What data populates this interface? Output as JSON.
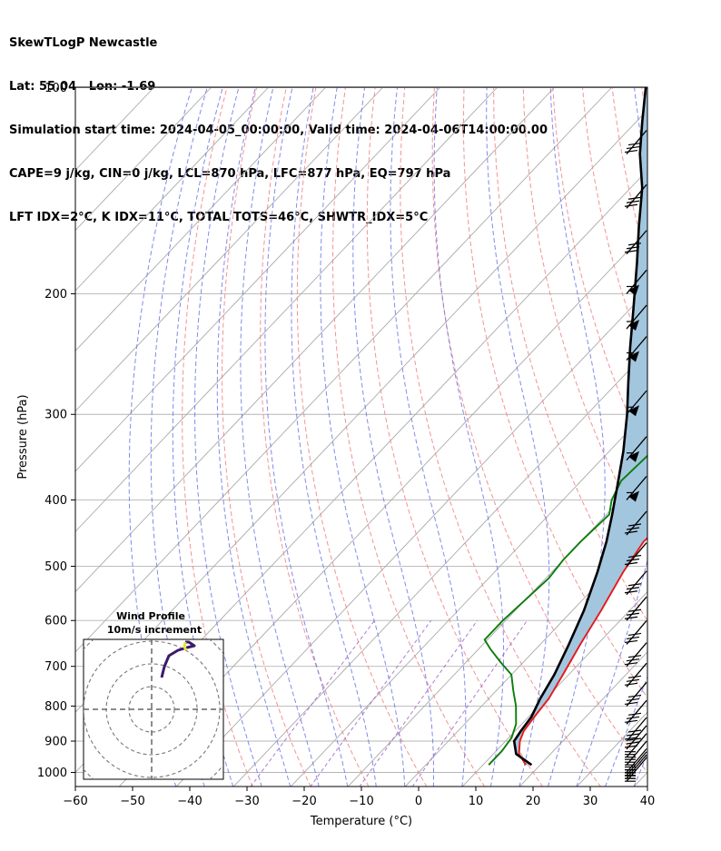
{
  "header": {
    "lines": [
      "SkewTLogP Newcastle",
      "Lat: 55.04   Lon: -1.69",
      "Simulation start time: 2024-04-05_00:00:00, Valid time: 2024-04-06T14:00:00.00",
      "CAPE=9 j/kg, CIN=0 j/kg, LCL=870 hPa, LFC=877 hPa, EQ=797 hPa",
      "LFT IDX=2°C, K IDX=11°C, TOTAL TOTS=46°C, SHWTR_IDX=5°C"
    ]
  },
  "chart_data": {
    "type": "line",
    "subtype": "skew-t log-p",
    "xlabel": "Temperature (°C)",
    "ylabel": "Pressure (hPa)",
    "xlim": [
      -60,
      40
    ],
    "ylim": [
      1050,
      100
    ],
    "y_scale": "log",
    "x_ticks": [
      -60,
      -50,
      -40,
      -30,
      -20,
      -10,
      0,
      10,
      20,
      30,
      40
    ],
    "x_tick_labels": [
      "−60",
      "−50",
      "−40",
      "−30",
      "−20",
      "−10",
      "0",
      "10",
      "20",
      "30",
      "40"
    ],
    "y_ticks": [
      1000,
      900,
      800,
      700,
      600,
      500,
      400,
      300,
      200,
      100
    ],
    "y_tick_labels": [
      "1000",
      "900",
      "800",
      "700",
      "600",
      "500",
      "400",
      "300",
      "200",
      "100"
    ],
    "grid": true,
    "colors": {
      "temperature": "#e8191a",
      "dewpoint": "#0b7d0b",
      "parcel": "#000000",
      "fill": "#a3c6df",
      "dry_adiabat": "#f08080",
      "moist_adiabat": "#6b75e8",
      "mixing_ratio": "#9b59c9",
      "isotherm": "#aaaaaa"
    },
    "series": [
      {
        "key": "temperature",
        "p": [
          975,
          940,
          900,
          870,
          830,
          780,
          720,
          650,
          580,
          510,
          460,
          430,
          400,
          375,
          340,
          300,
          270,
          240,
          220,
          200,
          185,
          170,
          155,
          140,
          125,
          115,
          108,
          100
        ],
        "t": [
          17.5,
          14.5,
          12.5,
          11.5,
          11,
          10.5,
          9,
          7,
          5,
          2.5,
          1,
          1.5,
          3,
          1.5,
          -2,
          -6,
          -9,
          -11.5,
          -12.5,
          -12,
          -9.5,
          -5.5,
          -1.5,
          5,
          11,
          16,
          18,
          18.5
        ]
      },
      {
        "key": "dewpoint",
        "p": [
          975,
          930,
          890,
          850,
          800,
          760,
          720,
          690,
          660,
          640,
          600,
          560,
          520,
          490,
          460,
          420,
          400,
          375,
          340,
          320,
          300,
          270,
          240,
          210,
          190,
          170,
          155,
          140,
          125,
          112,
          100
        ],
        "t": [
          11,
          11,
          10.5,
          9,
          6,
          3,
          0,
          -4,
          -8,
          -10.5,
          -10.5,
          -10,
          -9.5,
          -10,
          -10,
          -9.5,
          -11.5,
          -13,
          -12.5,
          -13,
          -14,
          -15,
          -17,
          -20,
          -24,
          -28,
          -30,
          -31,
          -32,
          -34,
          -35
        ]
      },
      {
        "key": "parcel",
        "p": [
          975,
          940,
          900,
          870,
          830,
          780,
          720,
          650,
          580,
          510,
          460,
          420,
          380,
          340,
          300,
          270,
          240,
          210,
          180,
          160,
          140,
          125,
          112,
          100
        ],
        "t": [
          18.5,
          14,
          11.5,
          11,
          10.5,
          9,
          7.5,
          5,
          2,
          -2,
          -5.5,
          -9,
          -13,
          -17.5,
          -23,
          -28,
          -33.5,
          -39.5,
          -46.5,
          -52,
          -58,
          -64,
          -69,
          -74
        ]
      }
    ],
    "wind_barbs_p": [
      1030,
      1020,
      1010,
      1000,
      975,
      950,
      925,
      900,
      850,
      800,
      750,
      700,
      650,
      600,
      550,
      500,
      450,
      400,
      350,
      300,
      250,
      225,
      200,
      175,
      150,
      125
    ],
    "inset": {
      "title": "Wind Profile",
      "subtitle": "10m/s increment"
    }
  }
}
